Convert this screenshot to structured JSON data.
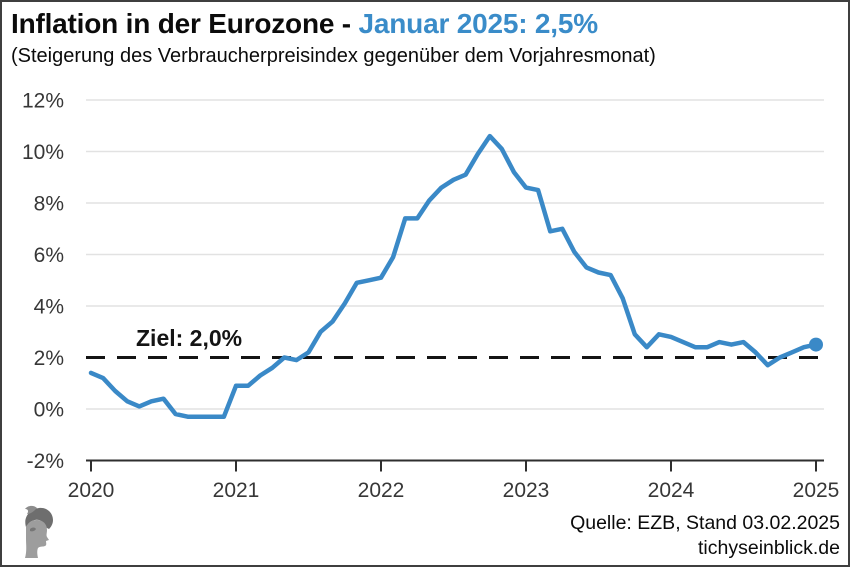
{
  "header": {
    "title_black": "Inflation in der Eurozone - ",
    "title_blue": "Januar 2025: 2,5%",
    "subtitle": "(Steigerung des Verbraucherpreisindex gegenüber dem Vorjahresmonat)"
  },
  "chart_data": {
    "type": "line",
    "title": "Inflation in der Eurozone - Januar 2025: 2,5%",
    "subtitle": "(Steigerung des Verbraucherpreisindex gegenüber dem Vorjahresmonat)",
    "start": "2020-01",
    "frequency": "monthly",
    "unit": "%",
    "ylim": [
      -2,
      12
    ],
    "y_tick_step": 2,
    "y_tick_labels": [
      "12%",
      "10%",
      "8%",
      "6%",
      "4%",
      "2%",
      "0%",
      "-2%"
    ],
    "x_tick_labels": [
      "2020",
      "2021",
      "2022",
      "2023",
      "2024",
      "2025"
    ],
    "grid": "horizontal",
    "legend_position": "none",
    "line_color": "#3a89c7",
    "grid_color": "#e2e2e2",
    "target_line": {
      "value": 2.0,
      "label": "Ziel: 2,0%",
      "style": "dashed",
      "color": "#141414"
    },
    "series": [
      {
        "name": "Inflation",
        "values": [
          1.4,
          1.2,
          0.7,
          0.3,
          0.1,
          0.3,
          0.4,
          -0.2,
          -0.3,
          -0.3,
          -0.3,
          -0.3,
          0.9,
          0.9,
          1.3,
          1.6,
          2.0,
          1.9,
          2.2,
          3.0,
          3.4,
          4.1,
          4.9,
          5.0,
          5.1,
          5.9,
          7.4,
          7.4,
          8.1,
          8.6,
          8.9,
          9.1,
          9.9,
          10.6,
          10.1,
          9.2,
          8.6,
          8.5,
          6.9,
          7.0,
          6.1,
          5.5,
          5.3,
          5.2,
          4.3,
          2.9,
          2.4,
          2.9,
          2.8,
          2.6,
          2.4,
          2.4,
          2.6,
          2.5,
          2.6,
          2.2,
          1.7,
          2.0,
          2.2,
          2.4,
          2.5
        ]
      }
    ],
    "latest_point": {
      "label": "Januar 2025",
      "value": 2.5,
      "marker": "dot"
    }
  },
  "footer": {
    "source_line": "Quelle: EZB, Stand 03.02.2025",
    "website_line": "tichyseinblick.de",
    "logo": "classical-head-logo"
  }
}
